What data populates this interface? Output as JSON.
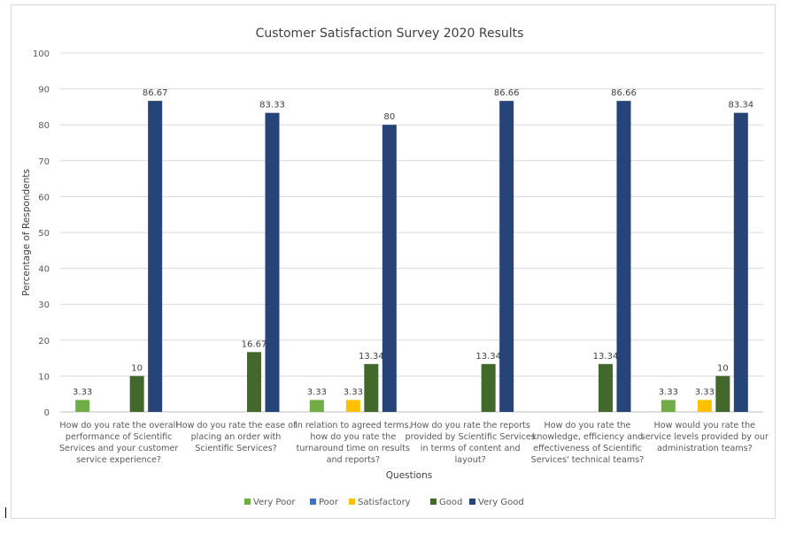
{
  "chart_data": {
    "type": "bar",
    "title": "Customer Satisfaction Survey 2020 Results",
    "xlabel": "Questions",
    "ylabel": "Percentage of Respondents",
    "ylim": [
      0,
      100
    ],
    "yticks": [
      0,
      10,
      20,
      30,
      40,
      50,
      60,
      70,
      80,
      90,
      100
    ],
    "grid": true,
    "legend_position": "bottom",
    "categories": [
      "How do you rate the overall performance of Scientific Services and your customer service experience?",
      "How do you rate the ease of placing an order with Scientific Services?",
      "In relation to agreed terms, how do you rate the turnaround time on results and reports?",
      "How do you rate the reports provided by Scientific Services in terms of content and layout?",
      "How do you rate the knowledge, efficiency and effectiveness of Scientific Services' technical teams?",
      "How would you rate the service levels provided by our administration teams?"
    ],
    "category_lines": [
      [
        "How do you rate the overall",
        "performance of Scientific",
        "Services and your customer",
        "service experience?"
      ],
      [
        "How do you rate the ease of",
        "placing an order with",
        "Scientific Services?"
      ],
      [
        "In relation to agreed terms,",
        "how do you rate the",
        "turnaround time on results",
        "and reports?"
      ],
      [
        "How do you rate the reports",
        "provided by Scientific Services",
        "in terms of content and",
        "layout?"
      ],
      [
        "How do you rate the",
        "knowledge, efficiency and",
        "effectiveness of Scientific",
        "Services' technical teams?"
      ],
      [
        "How would you rate the",
        "service levels provided by our",
        "administration teams?"
      ]
    ],
    "series": [
      {
        "name": "Very Poor",
        "color": "#70ad47",
        "values": [
          3.33,
          null,
          3.33,
          null,
          null,
          3.33
        ]
      },
      {
        "name": "Poor",
        "color": "#4472c4",
        "values": [
          null,
          null,
          null,
          null,
          null,
          null
        ]
      },
      {
        "name": "Satisfactory",
        "color": "#ffc000",
        "values": [
          null,
          null,
          3.33,
          null,
          null,
          3.33
        ]
      },
      {
        "name": "Good",
        "color": "#43682b",
        "values": [
          10,
          16.67,
          13.34,
          13.34,
          13.34,
          10
        ]
      },
      {
        "name": "Very Good",
        "color": "#264478",
        "values": [
          86.67,
          83.33,
          80,
          86.66,
          86.66,
          83.34
        ]
      }
    ],
    "data_labels": true
  }
}
